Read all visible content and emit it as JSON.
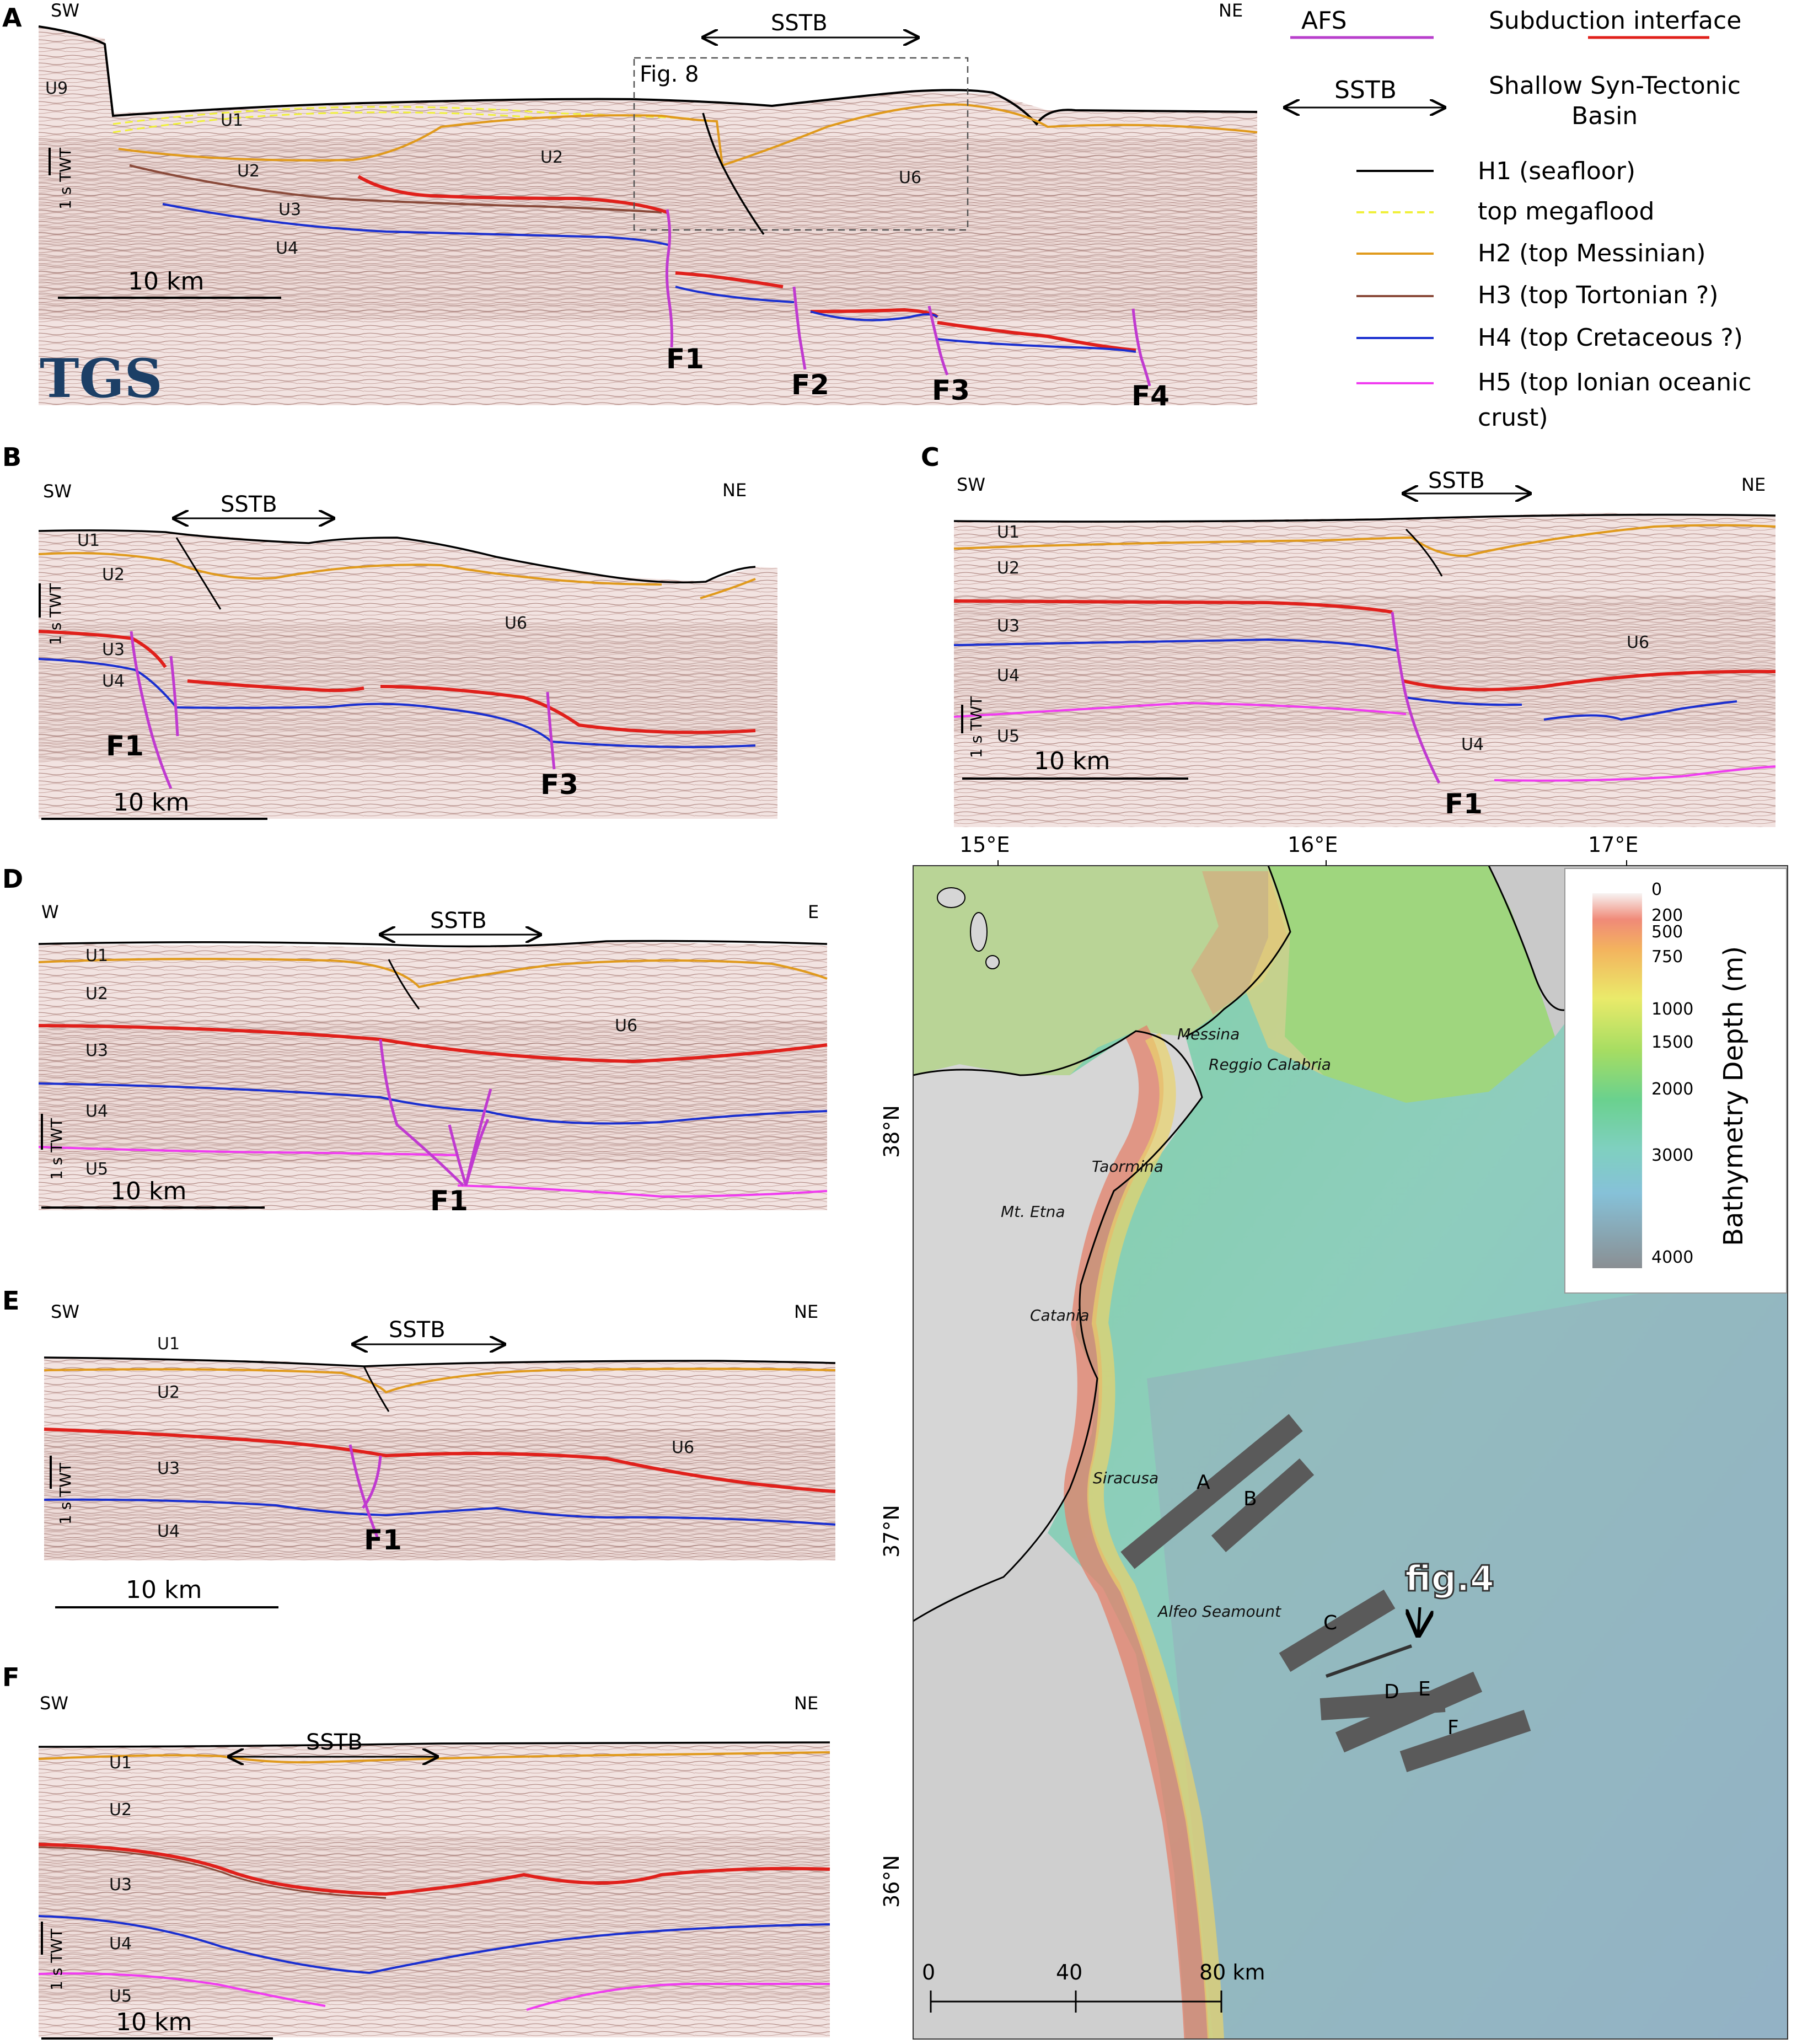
{
  "panels": {
    "A": {
      "label": "A",
      "left": "SW",
      "right": "NE",
      "sstb": "SSTB",
      "units": [
        "U9",
        "U1",
        "U2",
        "U2",
        "U3",
        "U4",
        "U6"
      ],
      "faults": [
        "F1",
        "F2",
        "F3",
        "F4"
      ],
      "scale": "10 km",
      "twt": "1 s TWT",
      "box_label": "Fig. 8",
      "logo": "TGS"
    },
    "B": {
      "label": "B",
      "left": "SW",
      "right": "NE",
      "sstb": "SSTB",
      "units": [
        "U1",
        "U2",
        "U3",
        "U4",
        "U6"
      ],
      "faults": [
        "F1",
        "F3"
      ],
      "scale": "10 km",
      "twt": "1 s TWT"
    },
    "C": {
      "label": "C",
      "left": "SW",
      "right": "NE",
      "sstb": "SSTB",
      "units": [
        "U1",
        "U2",
        "U3",
        "U4",
        "U5",
        "U6",
        "U4"
      ],
      "faults": [
        "F1"
      ],
      "scale": "10 km",
      "twt": "1 s TWT"
    },
    "D": {
      "label": "D",
      "left": "W",
      "right": "E",
      "sstb": "SSTB",
      "units": [
        "U1",
        "U2",
        "U3",
        "U4",
        "U5",
        "U6"
      ],
      "faults": [
        "F1"
      ],
      "scale": "10 km",
      "twt": "1 s TWT"
    },
    "E": {
      "label": "E",
      "left": "SW",
      "right": "NE",
      "sstb": "SSTB",
      "units": [
        "U1",
        "U2",
        "U3",
        "U4",
        "U6"
      ],
      "faults": [
        "F1"
      ],
      "scale": "10 km",
      "twt": "1 s TWT"
    },
    "F": {
      "label": "F",
      "left": "SW",
      "right": "NE",
      "sstb": "SSTB",
      "units": [
        "U1",
        "U2",
        "U3",
        "U4",
        "U5"
      ],
      "scale": "10 km",
      "twt": "1 s TWT"
    }
  },
  "legend": [
    {
      "label": "AFS",
      "color": "#b83fcc",
      "style": "solid",
      "side": "left"
    },
    {
      "label": "Subduction interface",
      "color": "#e0201b",
      "style": "solid",
      "side": "right"
    },
    {
      "label": "SSTB",
      "style": "arrow",
      "side": "left"
    },
    {
      "label": "Shallow Syn-Tectonic",
      "label2": "Basin",
      "style": "none",
      "side": "right"
    },
    {
      "label": "H1 (seafloor)",
      "color": "#000000",
      "style": "solid"
    },
    {
      "label": "top megaflood",
      "color": "#f0f03a",
      "style": "dashed"
    },
    {
      "label": "H2 (top Messinian)",
      "color": "#e09a1c",
      "style": "solid"
    },
    {
      "label": "H3 (top Tortonian ?)",
      "color": "#8a4a3a",
      "style": "solid"
    },
    {
      "label": "H4 (top Cretaceous ?)",
      "color": "#1a2fd0",
      "style": "solid"
    },
    {
      "label": "H5 (top Ionian oceanic",
      "label2": "crust)",
      "color": "#f03cf0",
      "style": "solid"
    }
  ],
  "map": {
    "lon_ticks": [
      "15°E",
      "16°E",
      "17°E"
    ],
    "lat_ticks": [
      "38°N",
      "37°N",
      "36°N"
    ],
    "places": [
      "Messina",
      "Reggio Calabria",
      "Taormina",
      "Mt. Etna",
      "Catania",
      "Siracusa",
      "Alfeo Seamount"
    ],
    "profiles": [
      "A",
      "B",
      "C",
      "D",
      "E",
      "F"
    ],
    "inset": "fig.4",
    "scalebar": [
      "0",
      "40",
      "80 km"
    ],
    "colorbar": {
      "title": "Bathymetry Depth (m)",
      "ticks": [
        "0",
        "200",
        "500",
        "750",
        "1000",
        "1500",
        "2000",
        "3000",
        "4000"
      ]
    }
  }
}
